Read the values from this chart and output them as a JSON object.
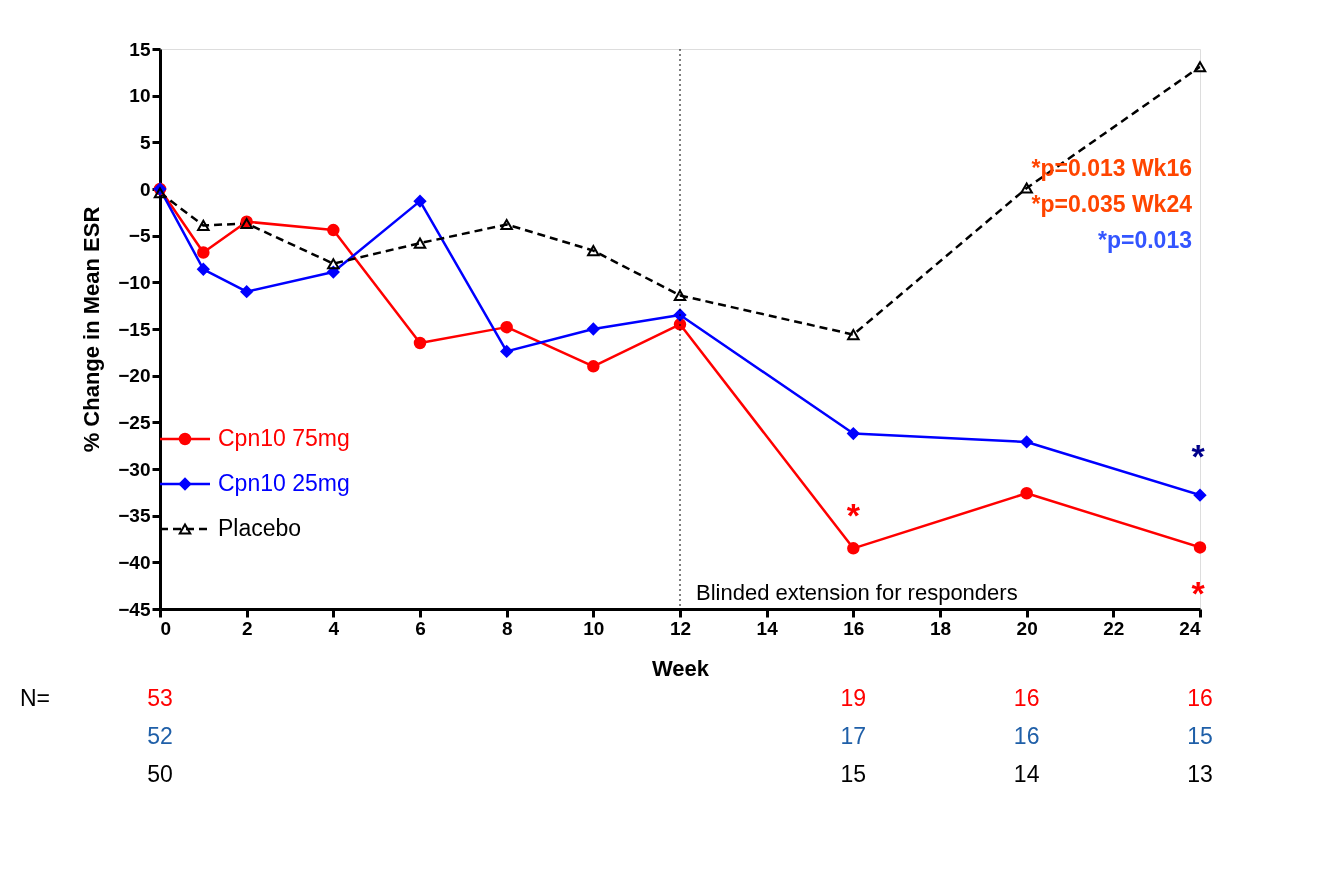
{
  "chart_data": {
    "type": "line",
    "ylabel": "% Change in Mean ESR",
    "xlabel": "Week",
    "x": [
      0,
      1,
      2,
      4,
      6,
      8,
      10,
      12,
      16,
      20,
      24
    ],
    "series": [
      {
        "name": "Cpn10 75mg",
        "color": "#ff0000",
        "marker": "circle",
        "line_style": "solid",
        "values": [
          0,
          -6.8,
          -3.5,
          -4.4,
          -16.5,
          -14.8,
          -19,
          -14.5,
          -38.5,
          -32.6,
          -38.4
        ]
      },
      {
        "name": "Cpn10 25mg",
        "color": "#0000ff",
        "marker": "diamond",
        "line_style": "solid",
        "values": [
          0,
          -8.6,
          -11,
          -8.9,
          -1.3,
          -17.4,
          -15,
          -13.5,
          -26.2,
          -27.1,
          -32.8
        ]
      },
      {
        "name": "Placebo",
        "color": "#000000",
        "marker": "triangle",
        "line_style": "dashed",
        "values": [
          -0.4,
          -3.9,
          -3.7,
          -8,
          -5.8,
          -3.8,
          -6.6,
          -11.4,
          -15.6,
          0.1,
          13.1
        ]
      }
    ],
    "xlim": [
      0,
      24
    ],
    "xticks": [
      0,
      2,
      4,
      6,
      8,
      10,
      12,
      14,
      16,
      18,
      20,
      22,
      24
    ],
    "ylim": [
      -45,
      15
    ],
    "yticks": [
      -45,
      -40,
      -35,
      -30,
      -25,
      -20,
      -15,
      -10,
      -5,
      0,
      5,
      10,
      15
    ],
    "grid": false,
    "legend": "bottom left",
    "ref_lines": [
      {
        "axis": "x",
        "value": 12,
        "label": "Blinded extension for responders",
        "color": "#000000",
        "line_style": "dotted"
      }
    ],
    "annotations": [
      "*p=0.013  Wk16",
      "*p=0.035  Wk24",
      "*p=0.013",
      "N=",
      "*",
      "*",
      "*",
      "53",
      "52",
      "50",
      "19",
      "17",
      "15",
      "16",
      "16",
      "14",
      "16",
      "15",
      "13"
    ]
  }
}
